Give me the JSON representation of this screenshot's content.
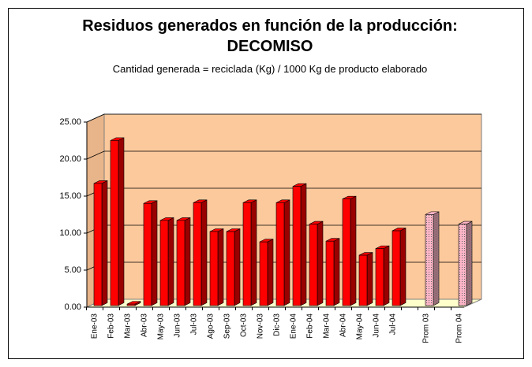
{
  "chart_data": {
    "type": "bar3d",
    "title": "Residuos generados en función de la producción:",
    "subtitle_bold": "DECOMISO",
    "subtitle": "Cantidad generada = reciclada (Kg) / 1000 Kg de producto elaborado",
    "categories": [
      "Ene-03",
      "Feb-03",
      "Mar-03",
      "Abr-03",
      "May-03",
      "Jun-03",
      "Jul-03",
      "Ago-03",
      "Sep-03",
      "Oct-03",
      "Nov-03",
      "Dic-03",
      "Ene-04",
      "Feb-04",
      "Mar-04",
      "Abr-04",
      "May-04",
      "Jun-04",
      "Jul-04",
      null,
      "Prom 03",
      null,
      "Prom 04"
    ],
    "values": [
      16.5,
      22.3,
      0.2,
      13.8,
      11.5,
      11.5,
      13.9,
      10.0,
      10.0,
      13.9,
      8.6,
      13.9,
      16.1,
      11.0,
      8.7,
      14.4,
      6.8,
      7.7,
      10.1,
      null,
      12.3,
      null,
      11.0
    ],
    "colors": [
      "#ff0000",
      "#ff0000",
      "#ff0000",
      "#ff0000",
      "#ff0000",
      "#ff0000",
      "#ff0000",
      "#ff0000",
      "#ff0000",
      "#ff0000",
      "#ff0000",
      "#ff0000",
      "#ff0000",
      "#ff0000",
      "#ff0000",
      "#ff0000",
      "#ff0000",
      "#ff0000",
      "#ff0000",
      null,
      "#ffb6c8",
      null,
      "#ffb6c8"
    ],
    "ylim": [
      0,
      25
    ],
    "yticks": [
      {
        "value": 0,
        "label": "0.00"
      },
      {
        "value": 5,
        "label": "5.00"
      },
      {
        "value": 10,
        "label": "10.00"
      },
      {
        "value": 15,
        "label": "15.00"
      },
      {
        "value": 20,
        "label": "20.00"
      },
      {
        "value": 25,
        "label": "25.00"
      }
    ],
    "grid": true
  }
}
